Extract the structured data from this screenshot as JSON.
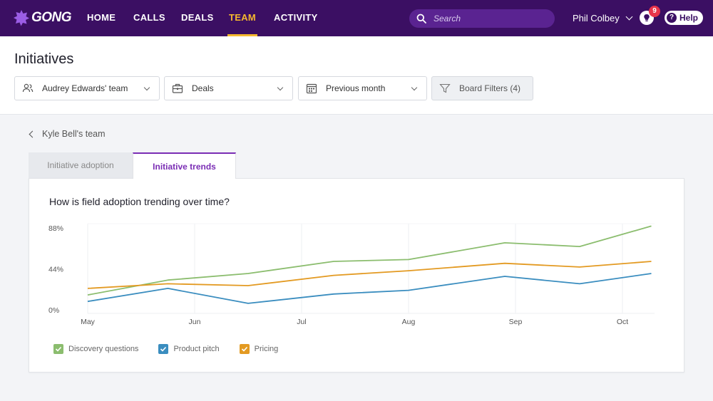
{
  "app": {
    "logo_text": "GONG"
  },
  "nav": {
    "items": [
      {
        "label": "HOME",
        "active": false
      },
      {
        "label": "CALLS",
        "active": false
      },
      {
        "label": "DEALS",
        "active": false
      },
      {
        "label": "TEAM",
        "active": true
      },
      {
        "label": "ACTIVITY",
        "active": false
      }
    ],
    "search_placeholder": "Search",
    "user_name": "Phil Colbey",
    "notification_count": "9",
    "help_label": "Help"
  },
  "header": {
    "title": "Initiatives",
    "filters": {
      "team": "Audrey Edwards' team",
      "entity": "Deals",
      "period": "Previous month",
      "board": "Board Filters (4)"
    }
  },
  "breadcrumb": {
    "back_label": "Kyle Bell's team"
  },
  "tabs": [
    {
      "label": "Initiative adoption",
      "active": false
    },
    {
      "label": "Initiative trends",
      "active": true
    }
  ],
  "card": {
    "question": "How is field adoption trending over time?"
  },
  "colors": {
    "nav_bg": "#3b0f63",
    "accent": "#f5b82e",
    "discovery": "#8bbd6e",
    "product": "#3a8dbf",
    "pricing": "#e39a22"
  },
  "chart_data": {
    "type": "line",
    "ylim": [
      0,
      88
    ],
    "yticks": [
      "88%",
      "44%",
      "0%"
    ],
    "x_labels": [
      "May",
      "Jun",
      "Jul",
      "Aug",
      "Sep",
      "Oct"
    ],
    "grid": true,
    "legend_position": "bottom-left",
    "series": [
      {
        "name": "Discovery questions",
        "color": "#8bbd6e",
        "points": [
          [
            0,
            16
          ],
          [
            0.75,
            32
          ],
          [
            1.5,
            39
          ],
          [
            2.3,
            52
          ],
          [
            3.0,
            54
          ],
          [
            3.9,
            72
          ],
          [
            4.6,
            68
          ],
          [
            5.27,
            90
          ]
        ]
      },
      {
        "name": "Product pitch",
        "color": "#3a8dbf",
        "points": [
          [
            0,
            9
          ],
          [
            0.75,
            23
          ],
          [
            1.5,
            7
          ],
          [
            2.3,
            17
          ],
          [
            3.0,
            21
          ],
          [
            3.9,
            36
          ],
          [
            4.6,
            28
          ],
          [
            5.27,
            39
          ]
        ]
      },
      {
        "name": "Pricing",
        "color": "#e39a22",
        "points": [
          [
            0,
            23
          ],
          [
            0.75,
            28
          ],
          [
            1.5,
            26
          ],
          [
            2.3,
            37
          ],
          [
            3.0,
            42
          ],
          [
            3.9,
            50
          ],
          [
            4.6,
            46
          ],
          [
            5.27,
            52
          ]
        ]
      }
    ]
  }
}
